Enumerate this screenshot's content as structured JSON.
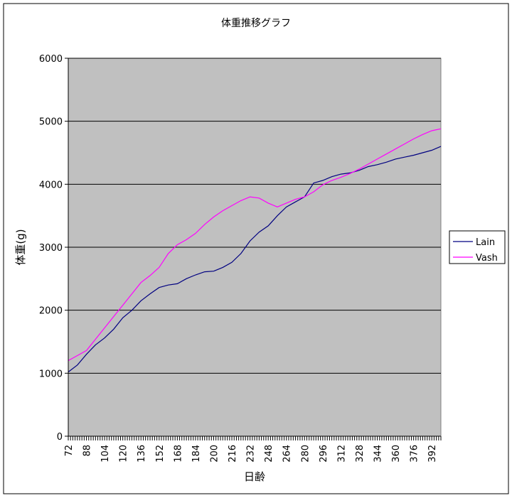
{
  "chart_data": {
    "type": "line",
    "title": "体重推移グラフ",
    "xlabel": "日齢",
    "ylabel": "体重(g)",
    "xlim": [
      72,
      400
    ],
    "ylim": [
      0,
      6000
    ],
    "yticks": [
      0,
      1000,
      2000,
      3000,
      4000,
      5000,
      6000
    ],
    "xticks": [
      72,
      88,
      104,
      120,
      136,
      152,
      168,
      184,
      200,
      216,
      232,
      248,
      264,
      280,
      296,
      312,
      328,
      344,
      360,
      376,
      392
    ],
    "grid": "horizontal",
    "background": "#c0c0c0",
    "legend_position": "right",
    "series": [
      {
        "name": "Lain",
        "color": "#000080",
        "x": [
          72,
          80,
          88,
          96,
          104,
          112,
          120,
          128,
          136,
          144,
          152,
          160,
          168,
          176,
          184,
          192,
          200,
          208,
          216,
          224,
          232,
          240,
          248,
          256,
          264,
          272,
          280,
          288,
          296,
          304,
          312,
          320,
          328,
          336,
          344,
          352,
          360,
          368,
          376,
          384,
          392,
          400
        ],
        "y": [
          1020,
          1130,
          1300,
          1450,
          1560,
          1700,
          1880,
          2000,
          2150,
          2260,
          2360,
          2400,
          2420,
          2500,
          2560,
          2610,
          2620,
          2680,
          2760,
          2900,
          3100,
          3240,
          3340,
          3500,
          3640,
          3720,
          3800,
          4020,
          4060,
          4120,
          4160,
          4180,
          4220,
          4280,
          4310,
          4350,
          4400,
          4430,
          4460,
          4500,
          4540,
          4600
        ]
      },
      {
        "name": "Vash",
        "color": "#ff00ff",
        "x": [
          72,
          80,
          88,
          96,
          104,
          112,
          120,
          128,
          136,
          144,
          152,
          160,
          168,
          176,
          184,
          192,
          200,
          208,
          216,
          224,
          232,
          240,
          248,
          256,
          264,
          272,
          280,
          288,
          296,
          304,
          312,
          320,
          328,
          336,
          344,
          352,
          360,
          368,
          376,
          384,
          392,
          400
        ],
        "y": [
          1200,
          1280,
          1360,
          1540,
          1720,
          1900,
          2080,
          2260,
          2440,
          2550,
          2680,
          2900,
          3040,
          3120,
          3220,
          3360,
          3480,
          3580,
          3660,
          3740,
          3800,
          3780,
          3700,
          3640,
          3700,
          3760,
          3800,
          3880,
          3990,
          4060,
          4110,
          4170,
          4240,
          4320,
          4400,
          4480,
          4560,
          4640,
          4720,
          4790,
          4850,
          4880
        ]
      }
    ]
  }
}
